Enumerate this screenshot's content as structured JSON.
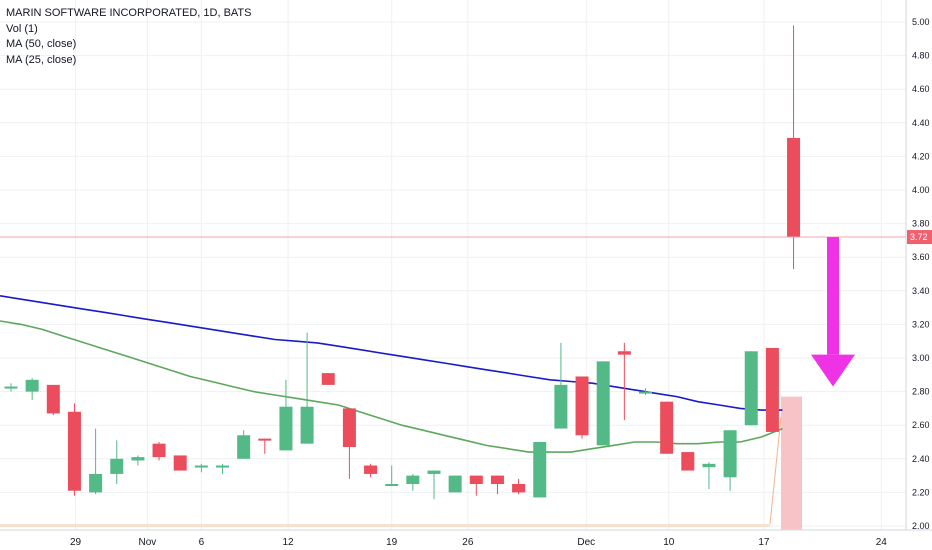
{
  "legend": {
    "title": "MARIN SOFTWARE INCORPORATED, 1D, BATS",
    "vol": "Vol (1)",
    "ma50": "MA (50, close)",
    "ma25": "MA (25, close)"
  },
  "colors": {
    "up": "#53b987",
    "down": "#eb4d5c",
    "ma50": "#1a1ac8",
    "ma25": "#5da75c",
    "price_line": "#f4a3a8",
    "price_tag": "#f0606e",
    "arrow": "#f032e6",
    "grid": "#eef0f3",
    "forecast_box": "#f7b9bd",
    "volume": "#f9d9c4"
  },
  "price_tag": "3.72",
  "chart_data": {
    "type": "candlestick",
    "title": "MARIN SOFTWARE INCORPORATED, 1D, BATS",
    "y_ticks": [
      "2.00",
      "2.20",
      "2.40",
      "2.60",
      "2.80",
      "3.00",
      "3.20",
      "3.40",
      "3.60",
      "3.80",
      "4.00",
      "4.20",
      "4.40",
      "4.60",
      "4.80",
      "5.00"
    ],
    "x_ticks": [
      "29",
      "Nov",
      "6",
      "12",
      "19",
      "26",
      "Dec",
      "10",
      "17",
      "24"
    ],
    "ylim": [
      2.0,
      5.05
    ],
    "candles": [
      {
        "o": 2.82,
        "h": 2.85,
        "l": 2.8,
        "c": 2.83
      },
      {
        "o": 2.8,
        "h": 2.88,
        "l": 2.75,
        "c": 2.87
      },
      {
        "o": 2.84,
        "h": 2.84,
        "l": 2.66,
        "c": 2.67
      },
      {
        "o": 2.68,
        "h": 2.73,
        "l": 2.18,
        "c": 2.21
      },
      {
        "o": 2.2,
        "h": 2.58,
        "l": 2.19,
        "c": 2.31
      },
      {
        "o": 2.31,
        "h": 2.51,
        "l": 2.25,
        "c": 2.4
      },
      {
        "o": 2.39,
        "h": 2.42,
        "l": 2.36,
        "c": 2.41
      },
      {
        "o": 2.49,
        "h": 2.5,
        "l": 2.39,
        "c": 2.41
      },
      {
        "o": 2.42,
        "h": 2.42,
        "l": 2.33,
        "c": 2.33
      },
      {
        "o": 2.35,
        "h": 2.37,
        "l": 2.32,
        "c": 2.36
      },
      {
        "o": 2.35,
        "h": 2.37,
        "l": 2.31,
        "c": 2.36
      },
      {
        "o": 2.4,
        "h": 2.57,
        "l": 2.4,
        "c": 2.54
      },
      {
        "o": 2.52,
        "h": 2.52,
        "l": 2.43,
        "c": 2.51
      },
      {
        "o": 2.45,
        "h": 2.87,
        "l": 2.45,
        "c": 2.71
      },
      {
        "o": 2.49,
        "h": 3.15,
        "l": 2.49,
        "c": 2.71
      },
      {
        "o": 2.91,
        "h": 2.91,
        "l": 2.84,
        "c": 2.84
      },
      {
        "o": 2.7,
        "h": 2.7,
        "l": 2.28,
        "c": 2.47
      },
      {
        "o": 2.36,
        "h": 2.37,
        "l": 2.29,
        "c": 2.31
      },
      {
        "o": 2.25,
        "h": 2.36,
        "l": 2.25,
        "c": 2.25
      },
      {
        "o": 2.25,
        "h": 2.31,
        "l": 2.21,
        "c": 2.3
      },
      {
        "o": 2.31,
        "h": 2.33,
        "l": 2.16,
        "c": 2.33
      },
      {
        "o": 2.2,
        "h": 2.3,
        "l": 2.2,
        "c": 2.3
      },
      {
        "o": 2.3,
        "h": 2.3,
        "l": 2.18,
        "c": 2.25
      },
      {
        "o": 2.3,
        "h": 2.3,
        "l": 2.19,
        "c": 2.25
      },
      {
        "o": 2.25,
        "h": 2.28,
        "l": 2.19,
        "c": 2.2
      },
      {
        "o": 2.17,
        "h": 2.5,
        "l": 2.17,
        "c": 2.5
      },
      {
        "o": 2.58,
        "h": 3.09,
        "l": 2.58,
        "c": 2.84
      },
      {
        "o": 2.89,
        "h": 2.89,
        "l": 2.52,
        "c": 2.54
      },
      {
        "o": 2.48,
        "h": 2.98,
        "l": 2.48,
        "c": 2.98
      },
      {
        "o": 3.04,
        "h": 3.09,
        "l": 2.63,
        "c": 3.02
      },
      {
        "o": 2.79,
        "h": 2.82,
        "l": 2.78,
        "c": 2.8
      },
      {
        "o": 2.74,
        "h": 2.74,
        "l": 2.43,
        "c": 2.43
      },
      {
        "o": 2.44,
        "h": 2.44,
        "l": 2.33,
        "c": 2.33
      },
      {
        "o": 2.35,
        "h": 2.38,
        "l": 2.22,
        "c": 2.37
      },
      {
        "o": 2.29,
        "h": 2.57,
        "l": 2.21,
        "c": 2.57
      },
      {
        "o": 2.6,
        "h": 3.04,
        "l": 2.6,
        "c": 3.04
      },
      {
        "o": 3.06,
        "h": 3.06,
        "l": 2.56,
        "c": 2.56
      },
      {
        "o": 4.31,
        "h": 4.98,
        "l": 3.53,
        "c": 3.72
      }
    ],
    "ma50": [
      3.37,
      3.35,
      3.33,
      3.31,
      3.29,
      3.27,
      3.25,
      3.23,
      3.21,
      3.19,
      3.17,
      3.15,
      3.13,
      3.11,
      3.1,
      3.09,
      3.07,
      3.05,
      3.03,
      3.01,
      2.99,
      2.97,
      2.95,
      2.93,
      2.91,
      2.89,
      2.87,
      2.86,
      2.85,
      2.83,
      2.81,
      2.79,
      2.77,
      2.74,
      2.72,
      2.7,
      2.69,
      2.69
    ],
    "ma25": [
      3.22,
      3.2,
      3.17,
      3.13,
      3.09,
      3.05,
      3.01,
      2.97,
      2.93,
      2.89,
      2.86,
      2.83,
      2.8,
      2.78,
      2.76,
      2.74,
      2.72,
      2.68,
      2.64,
      2.6,
      2.57,
      2.54,
      2.51,
      2.48,
      2.46,
      2.44,
      2.44,
      2.44,
      2.46,
      2.48,
      2.5,
      2.5,
      2.49,
      2.49,
      2.5,
      2.5,
      2.53,
      2.58
    ],
    "volume_note": "Vol (1)"
  }
}
